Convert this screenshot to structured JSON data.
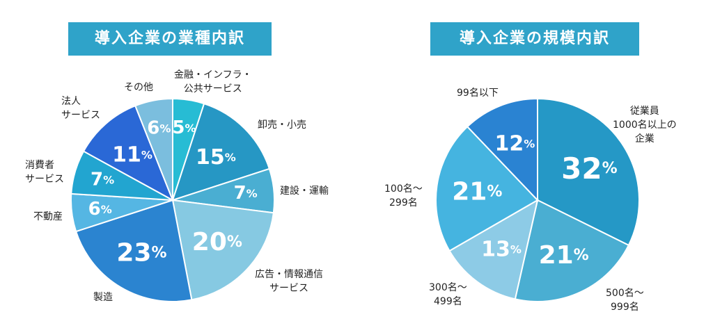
{
  "colors": {
    "title_bg": "#2fa3c9",
    "text": "#222222"
  },
  "chart_data": [
    {
      "type": "pie",
      "title": "導入企業の業種内訳",
      "unit": "%",
      "slices": [
        {
          "label_lines": [
            "金融・インフラ・",
            "公共サービス"
          ],
          "value": 5,
          "color": "#27bcd4"
        },
        {
          "label_lines": [
            "卸売・小売"
          ],
          "value": 15,
          "color": "#2697c4"
        },
        {
          "label_lines": [
            "建設・運輸"
          ],
          "value": 7,
          "color": "#4aaed2"
        },
        {
          "label_lines": [
            "広告・情報通信",
            "サービス"
          ],
          "value": 20,
          "color": "#86c9e2"
        },
        {
          "label_lines": [
            "製造"
          ],
          "value": 23,
          "color": "#2b84d0"
        },
        {
          "label_lines": [
            "不動産"
          ],
          "value": 6,
          "color": "#55b6e3"
        },
        {
          "label_lines": [
            "消費者",
            "サービス"
          ],
          "value": 7,
          "color": "#22a5d0"
        },
        {
          "label_lines": [
            "法人",
            "サービス"
          ],
          "value": 11,
          "color": "#2a68d6"
        },
        {
          "label_lines": [
            "その他"
          ],
          "value": 6,
          "color": "#7bbede"
        }
      ]
    },
    {
      "type": "pie",
      "title": "導入企業の規模内訳",
      "unit": "%",
      "slices": [
        {
          "label_lines": [
            "従業員",
            "1000名以上の",
            "企業"
          ],
          "value": 32,
          "color": "#2598c6"
        },
        {
          "label_lines": [
            "500名～",
            "999名"
          ],
          "value": 21,
          "color": "#4aaed2"
        },
        {
          "label_lines": [
            "300名～",
            "499名"
          ],
          "value": 13,
          "color": "#8dcbe6"
        },
        {
          "label_lines": [
            "100名～",
            "299名"
          ],
          "value": 21,
          "color": "#45b4e0"
        },
        {
          "label_lines": [
            "99名以下"
          ],
          "value": 12,
          "color": "#2a83d2"
        }
      ]
    }
  ]
}
